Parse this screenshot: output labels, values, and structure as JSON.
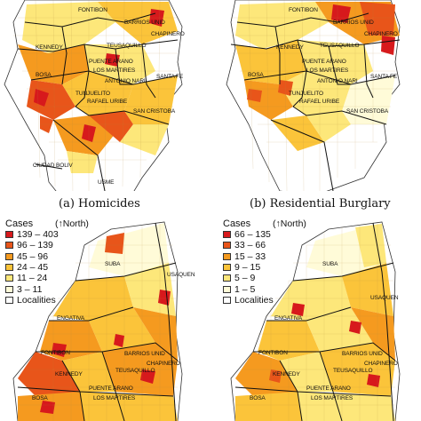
{
  "captions": {
    "a": "(a) Homicides",
    "b": "(b) Residential Burglary"
  },
  "panel_a_labels": {
    "fontibon": "FONTIBON",
    "barrios_unid": "BARRIOS UNID",
    "chapinero": "CHAPINERO",
    "teusaquillo": "TEUSAQUILLO",
    "kennedy": "KENNEDY",
    "puente_aranda": "PUENTE ARANO",
    "los_martires": "LOS MARTIRES",
    "antonio_narino": "ANTONIO NARI",
    "santa_fe": "SANTA FE",
    "bosa": "BOSA",
    "tunjuelito": "TUNJUELITO",
    "rafael_uribe": "RAFAEL URIBE",
    "san_cristobal": "SAN CRISTOBA",
    "ciudad_bolivar": "CIUDAD BOLIV",
    "usme": "USME"
  },
  "panel_b_labels": {
    "fontibon": "FONTIBON",
    "barrios_unid": "BARRIOS UNID",
    "chapinero": "CHAPINERO",
    "teusaquillo": "TEUSAQUILLO",
    "kennedy": "KENNEDY",
    "puente_aranda": "PUENTE ARANO",
    "los_martires": "LOS MARTIRES",
    "antonio_narino": "ANTONIO NARI",
    "santa_fe": "SANTA FE",
    "bosa": "BOSA",
    "tunjuelito": "TUNJUELITO",
    "rafael_uribe": "RAFAEL URIBE",
    "san_cristobal": "SAN CRISTOBA"
  },
  "panel_c_labels": {
    "suba": "SUBA",
    "usaquen": "USAQUEN",
    "engativa": "ENGATIVA",
    "fontibon": "FONTIBON",
    "barrios_unid": "BARRIOS UNID",
    "kennedy": "KENNEDY",
    "teusaquillo": "TEUSAQUILLO",
    "chapinero": "CHAPINERO",
    "bosa": "BOSA",
    "puente_aranda": "PUENTE ARANO",
    "los_martires": "LOS MARTIRES"
  },
  "panel_d_labels": {
    "suba": "SUBA",
    "usaquen": "USAQUEN",
    "engativa": "ENGATIVA",
    "fontibon": "FONTIBON",
    "barrios_unid": "BARRIOS UNID",
    "kennedy": "KENNEDY",
    "teusaquillo": "TEUSAQUILLO",
    "chapinero": "CHAPINERO",
    "bosa": "BOSA",
    "puente_aranda": "PUENTE ARANO",
    "los_martires": "LOS MARTIRES"
  },
  "legend_c": {
    "title": "Cases",
    "north": "(↑North)",
    "items": [
      {
        "label": "139 – 403",
        "color": "#d7191c"
      },
      {
        "label": "96 – 139",
        "color": "#e8551a"
      },
      {
        "label": "45 – 96",
        "color": "#f59a1f"
      },
      {
        "label": "24 – 45",
        "color": "#fbc43a"
      },
      {
        "label": "11 – 24",
        "color": "#fde77a"
      },
      {
        "label": "3 – 11",
        "color": "#fffbd8"
      },
      {
        "label": "Localities",
        "color": "#ffffff"
      }
    ]
  },
  "legend_d": {
    "title": "Cases",
    "north": "(↑North)",
    "items": [
      {
        "label": "66 – 135",
        "color": "#d7191c"
      },
      {
        "label": "33 – 66",
        "color": "#e8551a"
      },
      {
        "label": "15 – 33",
        "color": "#f59a1f"
      },
      {
        "label": "9 – 15",
        "color": "#fbc43a"
      },
      {
        "label": "5 – 9",
        "color": "#fde77a"
      },
      {
        "label": "1 – 5",
        "color": "#fffbd8"
      },
      {
        "label": "Localities",
        "color": "#ffffff"
      }
    ]
  },
  "colors": {
    "c1": "#d7191c",
    "c2": "#e8551a",
    "c3": "#f59a1f",
    "c4": "#fbc43a",
    "c5": "#fde77a",
    "c6": "#fffbd8"
  }
}
